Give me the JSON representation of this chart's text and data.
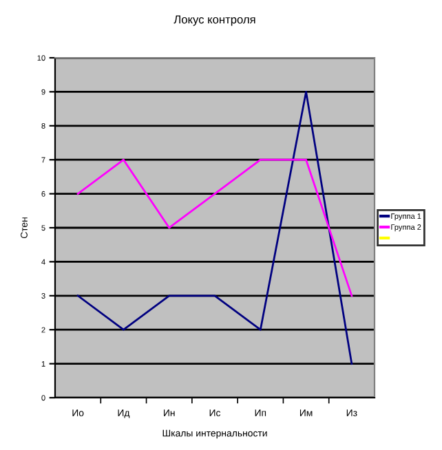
{
  "chart_data": {
    "type": "line",
    "title": "Локус контроля",
    "xlabel": "Шкалы интернальности",
    "ylabel": "Стен",
    "categories": [
      "Ио",
      "Ид",
      "Ин",
      "Ис",
      "Ип",
      "Им",
      "Из"
    ],
    "series": [
      {
        "name": "Группа 1",
        "color": "#000080",
        "values": [
          3,
          2,
          3,
          3,
          2,
          9,
          1
        ]
      },
      {
        "name": "Группа 2",
        "color": "#ff00ff",
        "values": [
          6,
          7,
          5,
          6,
          7,
          7,
          3
        ]
      },
      {
        "color": "#ffff00",
        "values": [
          null,
          null,
          null,
          null,
          null,
          null,
          null
        ]
      }
    ],
    "ylim": [
      0,
      10
    ],
    "yticks": [
      0,
      1,
      2,
      3,
      4,
      5,
      6,
      7,
      8,
      9,
      10
    ],
    "grid": "y",
    "legend": "right",
    "marker": "none",
    "line_style": "solid"
  }
}
